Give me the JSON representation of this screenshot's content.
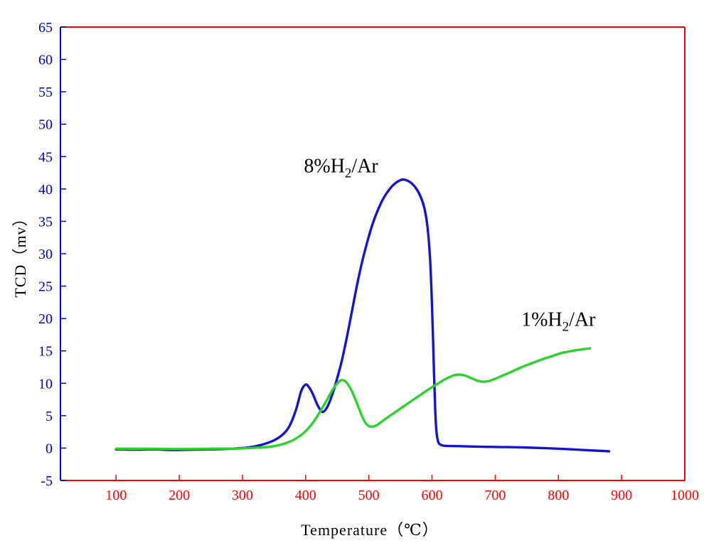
{
  "chart_data": {
    "type": "line",
    "title": "",
    "xlabel": "Temperature（℃）",
    "ylabel": "TCD（mv）",
    "xlim": [
      12,
      1000
    ],
    "ylim": [
      -5,
      65
    ],
    "x_ticks": [
      100,
      200,
      300,
      400,
      500,
      600,
      700,
      800,
      900,
      1000
    ],
    "y_ticks": [
      -5,
      0,
      5,
      10,
      15,
      20,
      25,
      30,
      35,
      40,
      45,
      50,
      55,
      60,
      65
    ],
    "grid": false,
    "legend_position": "none",
    "axis_colors": {
      "left": "#0000cd",
      "bottom": "#ff0000",
      "top": "#ff0000",
      "right": "#ff0000",
      "x_tick_label": "#ff0000",
      "y_tick_label": "#0000cd",
      "axis_title": "#000000"
    },
    "series": [
      {
        "name": "8%H2/Ar",
        "color": "#1414d2",
        "points": [
          [
            100,
            -0.2
          ],
          [
            130,
            -0.25
          ],
          [
            160,
            -0.2
          ],
          [
            190,
            -0.3
          ],
          [
            220,
            -0.25
          ],
          [
            250,
            -0.2
          ],
          [
            270,
            -0.15
          ],
          [
            290,
            -0.05
          ],
          [
            310,
            0.1
          ],
          [
            330,
            0.5
          ],
          [
            350,
            1.2
          ],
          [
            365,
            2.2
          ],
          [
            375,
            3.5
          ],
          [
            385,
            6.0
          ],
          [
            393,
            8.8
          ],
          [
            400,
            9.8
          ],
          [
            406,
            9.3
          ],
          [
            412,
            8.2
          ],
          [
            418,
            6.8
          ],
          [
            424,
            5.8
          ],
          [
            428,
            5.6
          ],
          [
            434,
            6.3
          ],
          [
            442,
            8.2
          ],
          [
            450,
            10.8
          ],
          [
            458,
            13.8
          ],
          [
            466,
            17.5
          ],
          [
            474,
            21.5
          ],
          [
            482,
            25.5
          ],
          [
            490,
            29.0
          ],
          [
            498,
            32.0
          ],
          [
            506,
            34.6
          ],
          [
            515,
            36.9
          ],
          [
            524,
            38.7
          ],
          [
            533,
            40.0
          ],
          [
            542,
            40.9
          ],
          [
            551,
            41.4
          ],
          [
            558,
            41.4
          ],
          [
            566,
            41.0
          ],
          [
            574,
            40.2
          ],
          [
            582,
            38.8
          ],
          [
            588,
            37.0
          ],
          [
            593,
            34.0
          ],
          [
            597,
            29.0
          ],
          [
            600,
            22.0
          ],
          [
            603,
            12.0
          ],
          [
            605,
            6.0
          ],
          [
            607,
            2.5
          ],
          [
            610,
            0.9
          ],
          [
            614,
            0.5
          ],
          [
            620,
            0.35
          ],
          [
            640,
            0.3
          ],
          [
            680,
            0.2
          ],
          [
            720,
            0.15
          ],
          [
            760,
            0.05
          ],
          [
            800,
            -0.1
          ],
          [
            840,
            -0.3
          ],
          [
            870,
            -0.45
          ],
          [
            880,
            -0.5
          ]
        ]
      },
      {
        "name": "1%H2/Ar",
        "color": "#2ad42a",
        "points": [
          [
            100,
            -0.1
          ],
          [
            150,
            -0.1
          ],
          [
            200,
            -0.15
          ],
          [
            250,
            -0.1
          ],
          [
            300,
            -0.05
          ],
          [
            330,
            0.1
          ],
          [
            350,
            0.3
          ],
          [
            370,
            0.8
          ],
          [
            385,
            1.5
          ],
          [
            400,
            2.6
          ],
          [
            412,
            4.0
          ],
          [
            424,
            5.8
          ],
          [
            434,
            7.5
          ],
          [
            444,
            9.2
          ],
          [
            452,
            10.2
          ],
          [
            458,
            10.5
          ],
          [
            464,
            10.2
          ],
          [
            472,
            9.0
          ],
          [
            480,
            7.2
          ],
          [
            488,
            5.2
          ],
          [
            494,
            4.0
          ],
          [
            500,
            3.4
          ],
          [
            505,
            3.3
          ],
          [
            512,
            3.5
          ],
          [
            522,
            4.2
          ],
          [
            535,
            5.1
          ],
          [
            550,
            6.1
          ],
          [
            565,
            7.1
          ],
          [
            580,
            8.1
          ],
          [
            595,
            9.1
          ],
          [
            610,
            10.0
          ],
          [
            622,
            10.7
          ],
          [
            634,
            11.2
          ],
          [
            642,
            11.35
          ],
          [
            652,
            11.2
          ],
          [
            662,
            10.8
          ],
          [
            672,
            10.4
          ],
          [
            680,
            10.25
          ],
          [
            690,
            10.35
          ],
          [
            700,
            10.7
          ],
          [
            712,
            11.2
          ],
          [
            726,
            11.8
          ],
          [
            742,
            12.5
          ],
          [
            758,
            13.1
          ],
          [
            774,
            13.7
          ],
          [
            790,
            14.2
          ],
          [
            806,
            14.7
          ],
          [
            822,
            15.0
          ],
          [
            838,
            15.25
          ],
          [
            850,
            15.4
          ]
        ]
      }
    ],
    "annotations": [
      {
        "id": "label-8pct",
        "prefix": "8%H",
        "sub": "2",
        "suffix": "/Ar",
        "x": 456,
        "y": 43.2,
        "color": "#000000"
      },
      {
        "id": "label-1pct",
        "prefix": "1%H",
        "sub": "2",
        "suffix": "/Ar",
        "x": 800,
        "y": 19.5,
        "color": "#000000"
      }
    ]
  }
}
